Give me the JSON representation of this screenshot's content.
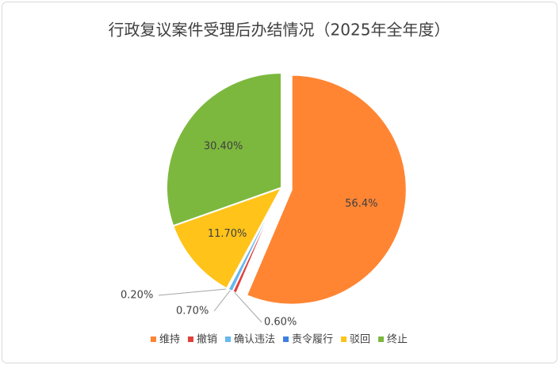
{
  "chart_data": {
    "type": "pie",
    "title": "行政复议案件受理后办结情况（2025年全年度）",
    "categories": [
      "维持",
      "撤销",
      "确认违法",
      "责令履行",
      "驳回",
      "终止"
    ],
    "values": [
      56.4,
      0.6,
      0.7,
      0.2,
      11.7,
      30.4
    ],
    "value_labels": [
      "56.4%",
      "0.60%",
      "0.70%",
      "0.20%",
      "11.70%",
      "30.40%"
    ],
    "colors": [
      "#ff8533",
      "#e0403b",
      "#66b8ee",
      "#3f7fe0",
      "#ffc31a",
      "#7cb83e"
    ],
    "legend": "bottom"
  }
}
